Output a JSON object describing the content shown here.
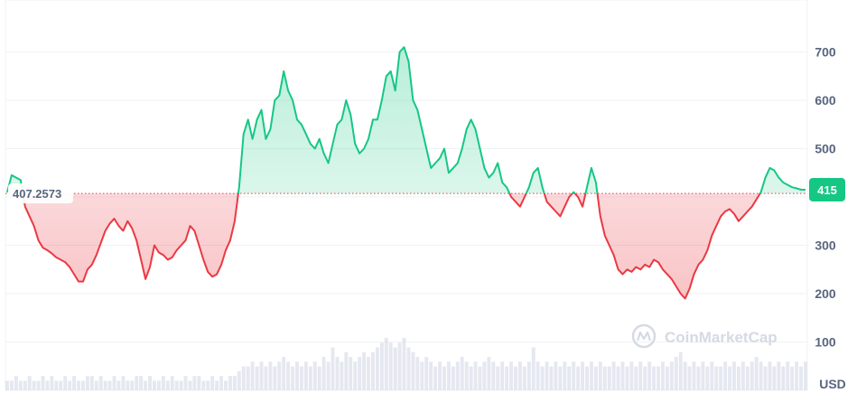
{
  "chart_data": {
    "type": "area",
    "ylim": [
      0,
      800
    ],
    "yticks": [
      100,
      200,
      300,
      400,
      500,
      600,
      700
    ],
    "ytick_labels": [
      "100",
      "200",
      "300",
      "400",
      "500",
      "600",
      "700"
    ],
    "unit_label": "USD",
    "baseline_value": 407.2573,
    "baseline_label": "407.2573",
    "current_value": 415,
    "current_label": "415",
    "watermark": "CoinMarketCap",
    "grid": true,
    "colors": {
      "up_line": "#16c784",
      "down_line": "#ea3943",
      "up_fill": "#16c784",
      "down_fill": "#ea3943",
      "baseline": "#ea3943",
      "grid": "#eff2f5",
      "volume": "#cfd6e4",
      "current_badge": "#16c784"
    },
    "x_index": [
      0,
      1,
      2,
      3,
      4,
      5,
      6,
      7,
      8,
      9,
      10,
      11,
      12,
      13,
      14,
      15,
      16,
      17,
      18,
      19,
      20,
      21,
      22,
      23,
      24,
      25,
      26,
      27,
      28,
      29,
      30,
      31,
      32,
      33,
      34,
      35,
      36,
      37,
      38,
      39,
      40,
      41,
      42,
      43,
      44,
      45,
      46,
      47,
      48,
      49,
      50,
      51,
      52,
      53,
      54,
      55,
      56,
      57,
      58,
      59,
      60,
      61,
      62,
      63,
      64,
      65,
      66,
      67,
      68,
      69,
      70,
      71,
      72,
      73,
      74,
      75,
      76,
      77,
      78,
      79,
      80,
      81,
      82,
      83,
      84,
      85,
      86,
      87,
      88,
      89,
      90,
      91,
      92,
      93,
      94,
      95,
      96,
      97,
      98,
      99,
      100,
      101,
      102,
      103,
      104,
      105,
      106,
      107,
      108,
      109,
      110,
      111,
      112,
      113,
      114,
      115,
      116,
      117,
      118,
      119,
      120,
      121,
      122,
      123,
      124,
      125,
      126,
      127,
      128,
      129,
      130,
      131,
      132,
      133,
      134,
      135,
      136,
      137,
      138,
      139,
      140,
      141,
      142,
      143,
      144,
      145,
      146,
      147,
      148,
      149,
      150,
      151,
      152,
      153,
      154,
      155,
      156,
      157,
      158,
      159,
      160,
      161,
      162,
      163,
      164,
      165,
      166,
      167,
      168,
      169,
      170,
      171,
      172,
      173,
      174,
      175,
      176,
      177,
      178,
      179
    ],
    "values": [
      410,
      445,
      440,
      435,
      380,
      360,
      340,
      310,
      295,
      290,
      283,
      275,
      270,
      265,
      255,
      240,
      225,
      225,
      250,
      260,
      280,
      305,
      330,
      345,
      355,
      340,
      330,
      350,
      335,
      310,
      270,
      230,
      255,
      300,
      285,
      280,
      270,
      275,
      290,
      300,
      310,
      340,
      330,
      300,
      270,
      245,
      235,
      240,
      260,
      290,
      310,
      350,
      420,
      530,
      560,
      520,
      560,
      580,
      520,
      540,
      600,
      610,
      660,
      620,
      600,
      560,
      550,
      530,
      510,
      500,
      520,
      490,
      470,
      510,
      550,
      560,
      600,
      570,
      510,
      490,
      500,
      520,
      560,
      560,
      600,
      650,
      660,
      620,
      700,
      710,
      680,
      600,
      580,
      540,
      500,
      460,
      470,
      480,
      500,
      450,
      460,
      470,
      500,
      540,
      560,
      540,
      500,
      460,
      440,
      450,
      470,
      430,
      420,
      400,
      390,
      380,
      400,
      420,
      450,
      460,
      420,
      390,
      380,
      370,
      360,
      380,
      400,
      410,
      400,
      380,
      420,
      460,
      430,
      360,
      320,
      300,
      280,
      250,
      240,
      250,
      245,
      255,
      250,
      260,
      255,
      270,
      265,
      250,
      240,
      230,
      215,
      200,
      190,
      210,
      240,
      260,
      270,
      290,
      320,
      340,
      360,
      370,
      375,
      365,
      350,
      360,
      370,
      380,
      395,
      410,
      440,
      460,
      455,
      440,
      430,
      425,
      420,
      418,
      415,
      415
    ],
    "volume": [
      2,
      2,
      3,
      2,
      2,
      3,
      2,
      2,
      3,
      2,
      3,
      2,
      2,
      3,
      2,
      3,
      2,
      2,
      3,
      3,
      2,
      3,
      2,
      2,
      3,
      2,
      3,
      2,
      2,
      3,
      3,
      2,
      3,
      2,
      2,
      3,
      2,
      3,
      2,
      2,
      3,
      2,
      3,
      3,
      2,
      2,
      3,
      2,
      3,
      2,
      3,
      3,
      4,
      5,
      5,
      6,
      5,
      6,
      5,
      6,
      5,
      6,
      7,
      6,
      5,
      6,
      5,
      6,
      5,
      6,
      5,
      7,
      6,
      9,
      7,
      6,
      8,
      7,
      6,
      7,
      8,
      7,
      8,
      9,
      10,
      11,
      10,
      9,
      10,
      11,
      9,
      8,
      7,
      6,
      7,
      6,
      5,
      6,
      5,
      6,
      5,
      6,
      7,
      6,
      5,
      6,
      5,
      6,
      7,
      6,
      5,
      6,
      5,
      6,
      5,
      6,
      5,
      6,
      9,
      6,
      5,
      6,
      5,
      6,
      5,
      6,
      5,
      6,
      5,
      6,
      5,
      6,
      5,
      6,
      5,
      5,
      6,
      5,
      6,
      5,
      6,
      5,
      6,
      5,
      6,
      5,
      5,
      6,
      5,
      6,
      7,
      8,
      6,
      5,
      6,
      5,
      6,
      5,
      6,
      5,
      5,
      6,
      5,
      6,
      5,
      6,
      5,
      6,
      7,
      6,
      5,
      6,
      5,
      6,
      5,
      6,
      5,
      6,
      5,
      6
    ]
  }
}
